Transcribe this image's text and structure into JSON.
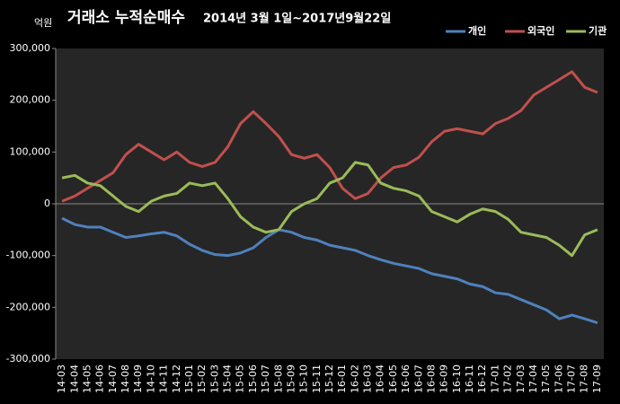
{
  "chart_data": {
    "type": "line",
    "title": "거래소 누적순매수",
    "subtitle": "2014년 3월 1일~2017년9월22일",
    "y_label": "억원",
    "categories": [
      "14-03",
      "14-04",
      "14-05",
      "14-06",
      "14-07",
      "14-08",
      "14-09",
      "14-10",
      "14-11",
      "14-12",
      "15-01",
      "15-02",
      "15-03",
      "15-04",
      "15-05",
      "15-06",
      "15-07",
      "15-08",
      "15-09",
      "15-10",
      "15-11",
      "15-12",
      "16-01",
      "16-02",
      "16-03",
      "16-04",
      "16-05",
      "16-06",
      "16-07",
      "16-08",
      "16-09",
      "16-10",
      "16-11",
      "16-12",
      "17-01",
      "17-02",
      "17-03",
      "17-04",
      "17-05",
      "17-06",
      "17-07",
      "17-08",
      "17-09"
    ],
    "series": [
      {
        "name": "개인",
        "color": "#4f81bd",
        "values": [
          -28000,
          -40000,
          -45000,
          -45000,
          -55000,
          -65000,
          -62000,
          -58000,
          -55000,
          -62000,
          -78000,
          -90000,
          -98000,
          -100000,
          -95000,
          -85000,
          -65000,
          -50000,
          -55000,
          -65000,
          -70000,
          -80000,
          -85000,
          -90000,
          -100000,
          -108000,
          -115000,
          -120000,
          -125000,
          -135000,
          -140000,
          -145000,
          -155000,
          -160000,
          -172000,
          -175000,
          -185000,
          -195000,
          -205000,
          -222000,
          -215000,
          -222000,
          -230000
        ]
      },
      {
        "name": "외국인",
        "color": "#c0504d",
        "values": [
          5000,
          15000,
          30000,
          45000,
          60000,
          95000,
          115000,
          100000,
          85000,
          100000,
          80000,
          72000,
          80000,
          110000,
          155000,
          178000,
          155000,
          130000,
          95000,
          88000,
          95000,
          70000,
          30000,
          10000,
          20000,
          50000,
          70000,
          75000,
          90000,
          120000,
          140000,
          145000,
          140000,
          135000,
          155000,
          165000,
          180000,
          210000,
          225000,
          240000,
          255000,
          225000,
          215000
        ]
      },
      {
        "name": "기관",
        "color": "#9bbb59",
        "values": [
          50000,
          55000,
          40000,
          35000,
          15000,
          -5000,
          -15000,
          5000,
          15000,
          20000,
          40000,
          35000,
          40000,
          10000,
          -25000,
          -45000,
          -55000,
          -50000,
          -15000,
          0,
          10000,
          40000,
          50000,
          80000,
          75000,
          40000,
          30000,
          25000,
          15000,
          -15000,
          -25000,
          -35000,
          -20000,
          -10000,
          -15000,
          -30000,
          -55000,
          -60000,
          -65000,
          -80000,
          -100000,
          -60000,
          -50000
        ]
      }
    ],
    "ylim": [
      -300000,
      300000
    ],
    "yticks": [
      {
        "value": -300000,
        "label": "-300,000"
      },
      {
        "value": -200000,
        "label": "-200,000"
      },
      {
        "value": -100000,
        "label": "-100,000"
      },
      0,
      {
        "value": 100000,
        "label": "100,000"
      },
      {
        "value": 200000,
        "label": "200,000"
      },
      {
        "value": 300000,
        "label": "300,000"
      }
    ],
    "grid": false,
    "legend": "top-right"
  }
}
